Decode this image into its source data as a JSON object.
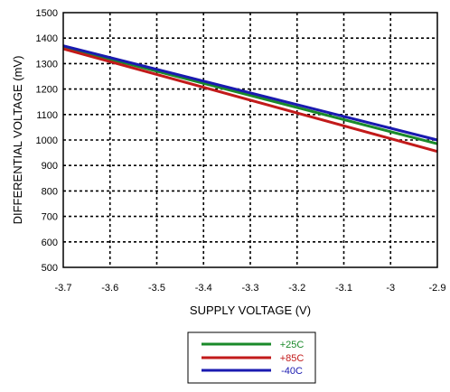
{
  "chart_data": {
    "type": "line",
    "title": "",
    "xlabel": "SUPPLY VOLTAGE (V)",
    "ylabel": "DIFFERENTIAL VOLTAGE (mV)",
    "xlim": [
      -3.7,
      -2.9
    ],
    "ylim": [
      500,
      1500
    ],
    "x_ticks": [
      -3.7,
      -3.6,
      -3.5,
      -3.4,
      -3.3,
      -3.2,
      -3.1,
      -3,
      -2.9
    ],
    "x_tick_labels": [
      "-3.7",
      "-3.6",
      "-3.5",
      "-3.4",
      "-3.3",
      "-3.2",
      "-3.1",
      "-3",
      "-2.9"
    ],
    "y_ticks": [
      500,
      600,
      700,
      800,
      900,
      1000,
      1100,
      1200,
      1300,
      1400,
      1500
    ],
    "y_tick_labels": [
      "500",
      "600",
      "700",
      "800",
      "900",
      "1000",
      "1100",
      "1200",
      "1300",
      "1400",
      "1500"
    ],
    "grid": true,
    "legend_position": "bottom-center",
    "series": [
      {
        "name": "+25C",
        "color": "#1a8a2a",
        "x": [
          -3.7,
          -2.9
        ],
        "y": [
          1365,
          985
        ]
      },
      {
        "name": "+85C",
        "color": "#c21a1a",
        "x": [
          -3.7,
          -2.9
        ],
        "y": [
          1358,
          955
        ]
      },
      {
        "name": "-40C",
        "color": "#1a1ab0",
        "x": [
          -3.7,
          -2.9
        ],
        "y": [
          1370,
          1000
        ]
      }
    ]
  }
}
